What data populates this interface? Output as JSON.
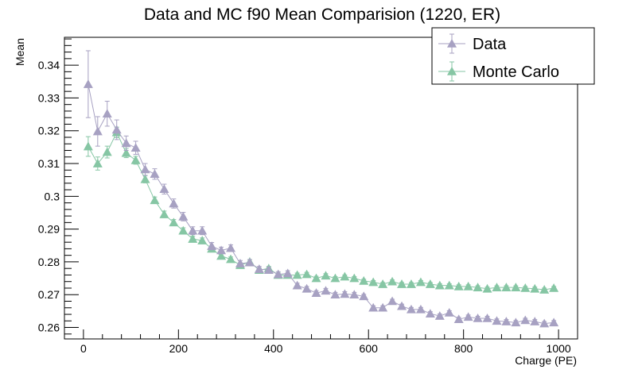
{
  "chart_data": {
    "type": "line",
    "title": "Data and MC f90 Mean Comparision (1220, ER)",
    "xlabel": "Charge (PE)",
    "ylabel": "Mean",
    "xlim": [
      -40,
      1040
    ],
    "ylim": [
      0.2565,
      0.3485
    ],
    "x_ticks": [
      0,
      200,
      400,
      600,
      800,
      1000
    ],
    "x_tick_labels": [
      "0",
      "200",
      "400",
      "600",
      "800",
      "1000"
    ],
    "y_ticks": [
      0.26,
      0.27,
      0.28,
      0.29,
      0.3,
      0.31,
      0.32,
      0.33,
      0.34
    ],
    "y_tick_labels": [
      "0.26",
      "0.27",
      "0.28",
      "0.29",
      "0.3",
      "0.31",
      "0.32",
      "0.33",
      "0.34"
    ],
    "grid": false,
    "legend_position": "top-right",
    "x": [
      10,
      30,
      50,
      70,
      90,
      110,
      130,
      150,
      170,
      190,
      210,
      230,
      250,
      270,
      290,
      310,
      330,
      350,
      370,
      390,
      410,
      430,
      450,
      470,
      490,
      510,
      530,
      550,
      570,
      590,
      610,
      630,
      650,
      670,
      690,
      710,
      730,
      750,
      770,
      790,
      810,
      830,
      850,
      870,
      890,
      910,
      930,
      950,
      970,
      990
    ],
    "series": [
      {
        "name": "Data",
        "color": "#a7a1c2",
        "values": [
          0.3342,
          0.3198,
          0.3252,
          0.3203,
          0.3162,
          0.3148,
          0.3082,
          0.3068,
          0.3022,
          0.2978,
          0.2938,
          0.2895,
          0.2895,
          0.2848,
          0.2835,
          0.2842,
          0.2795,
          0.2798,
          0.2778,
          0.2775,
          0.2762,
          0.2765,
          0.2728,
          0.2718,
          0.2705,
          0.2712,
          0.27,
          0.2702,
          0.27,
          0.2695,
          0.266,
          0.266,
          0.268,
          0.2665,
          0.2655,
          0.2655,
          0.2642,
          0.2635,
          0.2645,
          0.2625,
          0.2632,
          0.2628,
          0.2628,
          0.262,
          0.2618,
          0.2615,
          0.2622,
          0.2618,
          0.2612,
          0.2615
        ],
        "errors": [
          0.0102,
          0.0045,
          0.0038,
          0.003,
          0.0022,
          0.002,
          0.0018,
          0.0016,
          0.0015,
          0.0014,
          0.0013,
          0.0012,
          0.0012,
          0.0011,
          0.001,
          0.001,
          0.0009,
          0.0009,
          0.0008,
          0.0008,
          0.0008,
          0.0008,
          0.0007,
          0.0007,
          0.0007,
          0.0007,
          0.0007,
          0.0007,
          0.0007,
          0.0006,
          0.0006,
          0.0006,
          0.0006,
          0.0006,
          0.0006,
          0.0006,
          0.0006,
          0.0006,
          0.0006,
          0.0006,
          0.0006,
          0.0006,
          0.0006,
          0.0006,
          0.0006,
          0.0006,
          0.0006,
          0.0006,
          0.0006,
          0.0006
        ]
      },
      {
        "name": "Monte Carlo",
        "color": "#86c6a4",
        "values": [
          0.3152,
          0.31,
          0.3135,
          0.3195,
          0.3132,
          0.311,
          0.3052,
          0.2988,
          0.2945,
          0.292,
          0.2895,
          0.287,
          0.2865,
          0.284,
          0.2818,
          0.2808,
          0.279,
          0.28,
          0.2775,
          0.278,
          0.276,
          0.276,
          0.276,
          0.2762,
          0.275,
          0.2758,
          0.275,
          0.2755,
          0.275,
          0.2742,
          0.2738,
          0.2732,
          0.274,
          0.2732,
          0.2732,
          0.2738,
          0.2732,
          0.2728,
          0.2728,
          0.2725,
          0.2725,
          0.2722,
          0.2718,
          0.2722,
          0.2722,
          0.2722,
          0.272,
          0.2718,
          0.2715,
          0.272
        ],
        "errors": [
          0.003,
          0.002,
          0.0018,
          0.0016,
          0.0014,
          0.0012,
          0.0011,
          0.001,
          0.001,
          0.0009,
          0.0009,
          0.0008,
          0.0008,
          0.0008,
          0.0007,
          0.0007,
          0.0007,
          0.0007,
          0.0006,
          0.0006,
          0.0006,
          0.0006,
          0.0006,
          0.0006,
          0.0006,
          0.0006,
          0.0005,
          0.0005,
          0.0005,
          0.0005,
          0.0005,
          0.0005,
          0.0005,
          0.0005,
          0.0005,
          0.0005,
          0.0005,
          0.0005,
          0.0005,
          0.0005,
          0.0005,
          0.0005,
          0.0005,
          0.0005,
          0.0005,
          0.0005,
          0.0005,
          0.0005,
          0.0005,
          0.0005
        ]
      }
    ]
  }
}
